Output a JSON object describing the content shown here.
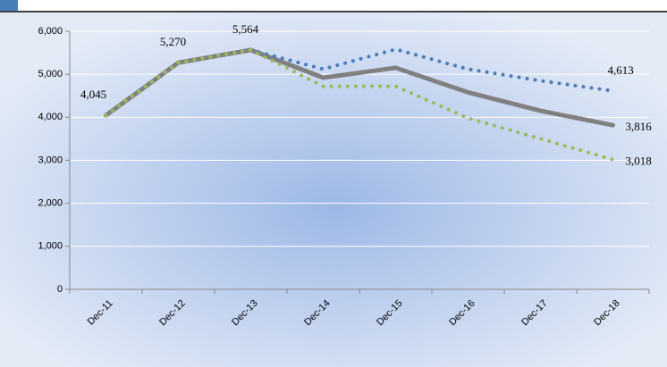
{
  "chart_data": {
    "type": "line",
    "categories": [
      "Dec-11",
      "Dec-12",
      "Dec-13",
      "Dec-14",
      "Dec-15",
      "Dec-16",
      "Dec-17",
      "Dec-18"
    ],
    "series": [
      {
        "color": "#4a7ebb",
        "dash": "dotted",
        "values": [
          null,
          null,
          5564,
          5120,
          5580,
          5120,
          4850,
          4613
        ],
        "value_labels": [
          null,
          null,
          null,
          null,
          null,
          null,
          null,
          "4,613"
        ]
      },
      {
        "color": "#808080",
        "dash": "solid",
        "values": [
          4045,
          5270,
          5564,
          4920,
          5150,
          4580,
          4150,
          3816
        ],
        "value_labels": [
          "4,045",
          "5,270",
          "5,564",
          null,
          null,
          null,
          null,
          "3,816"
        ]
      },
      {
        "color": "#9bbb59",
        "dash": "dotted",
        "values": [
          4045,
          5270,
          5564,
          4720,
          4720,
          3980,
          3500,
          3018
        ],
        "value_labels": [
          null,
          null,
          null,
          null,
          null,
          null,
          null,
          "3,018"
        ]
      }
    ],
    "ylim": [
      0,
      6000
    ],
    "yticks": [
      {
        "value": 0,
        "label": "0"
      },
      {
        "value": 1000,
        "label": "1,000"
      },
      {
        "value": 2000,
        "label": "2,000"
      },
      {
        "value": 3000,
        "label": "3,000"
      },
      {
        "value": 4000,
        "label": "4,000"
      },
      {
        "value": 5000,
        "label": "5,000"
      },
      {
        "value": 6000,
        "label": "6,000"
      }
    ],
    "grid": true
  }
}
